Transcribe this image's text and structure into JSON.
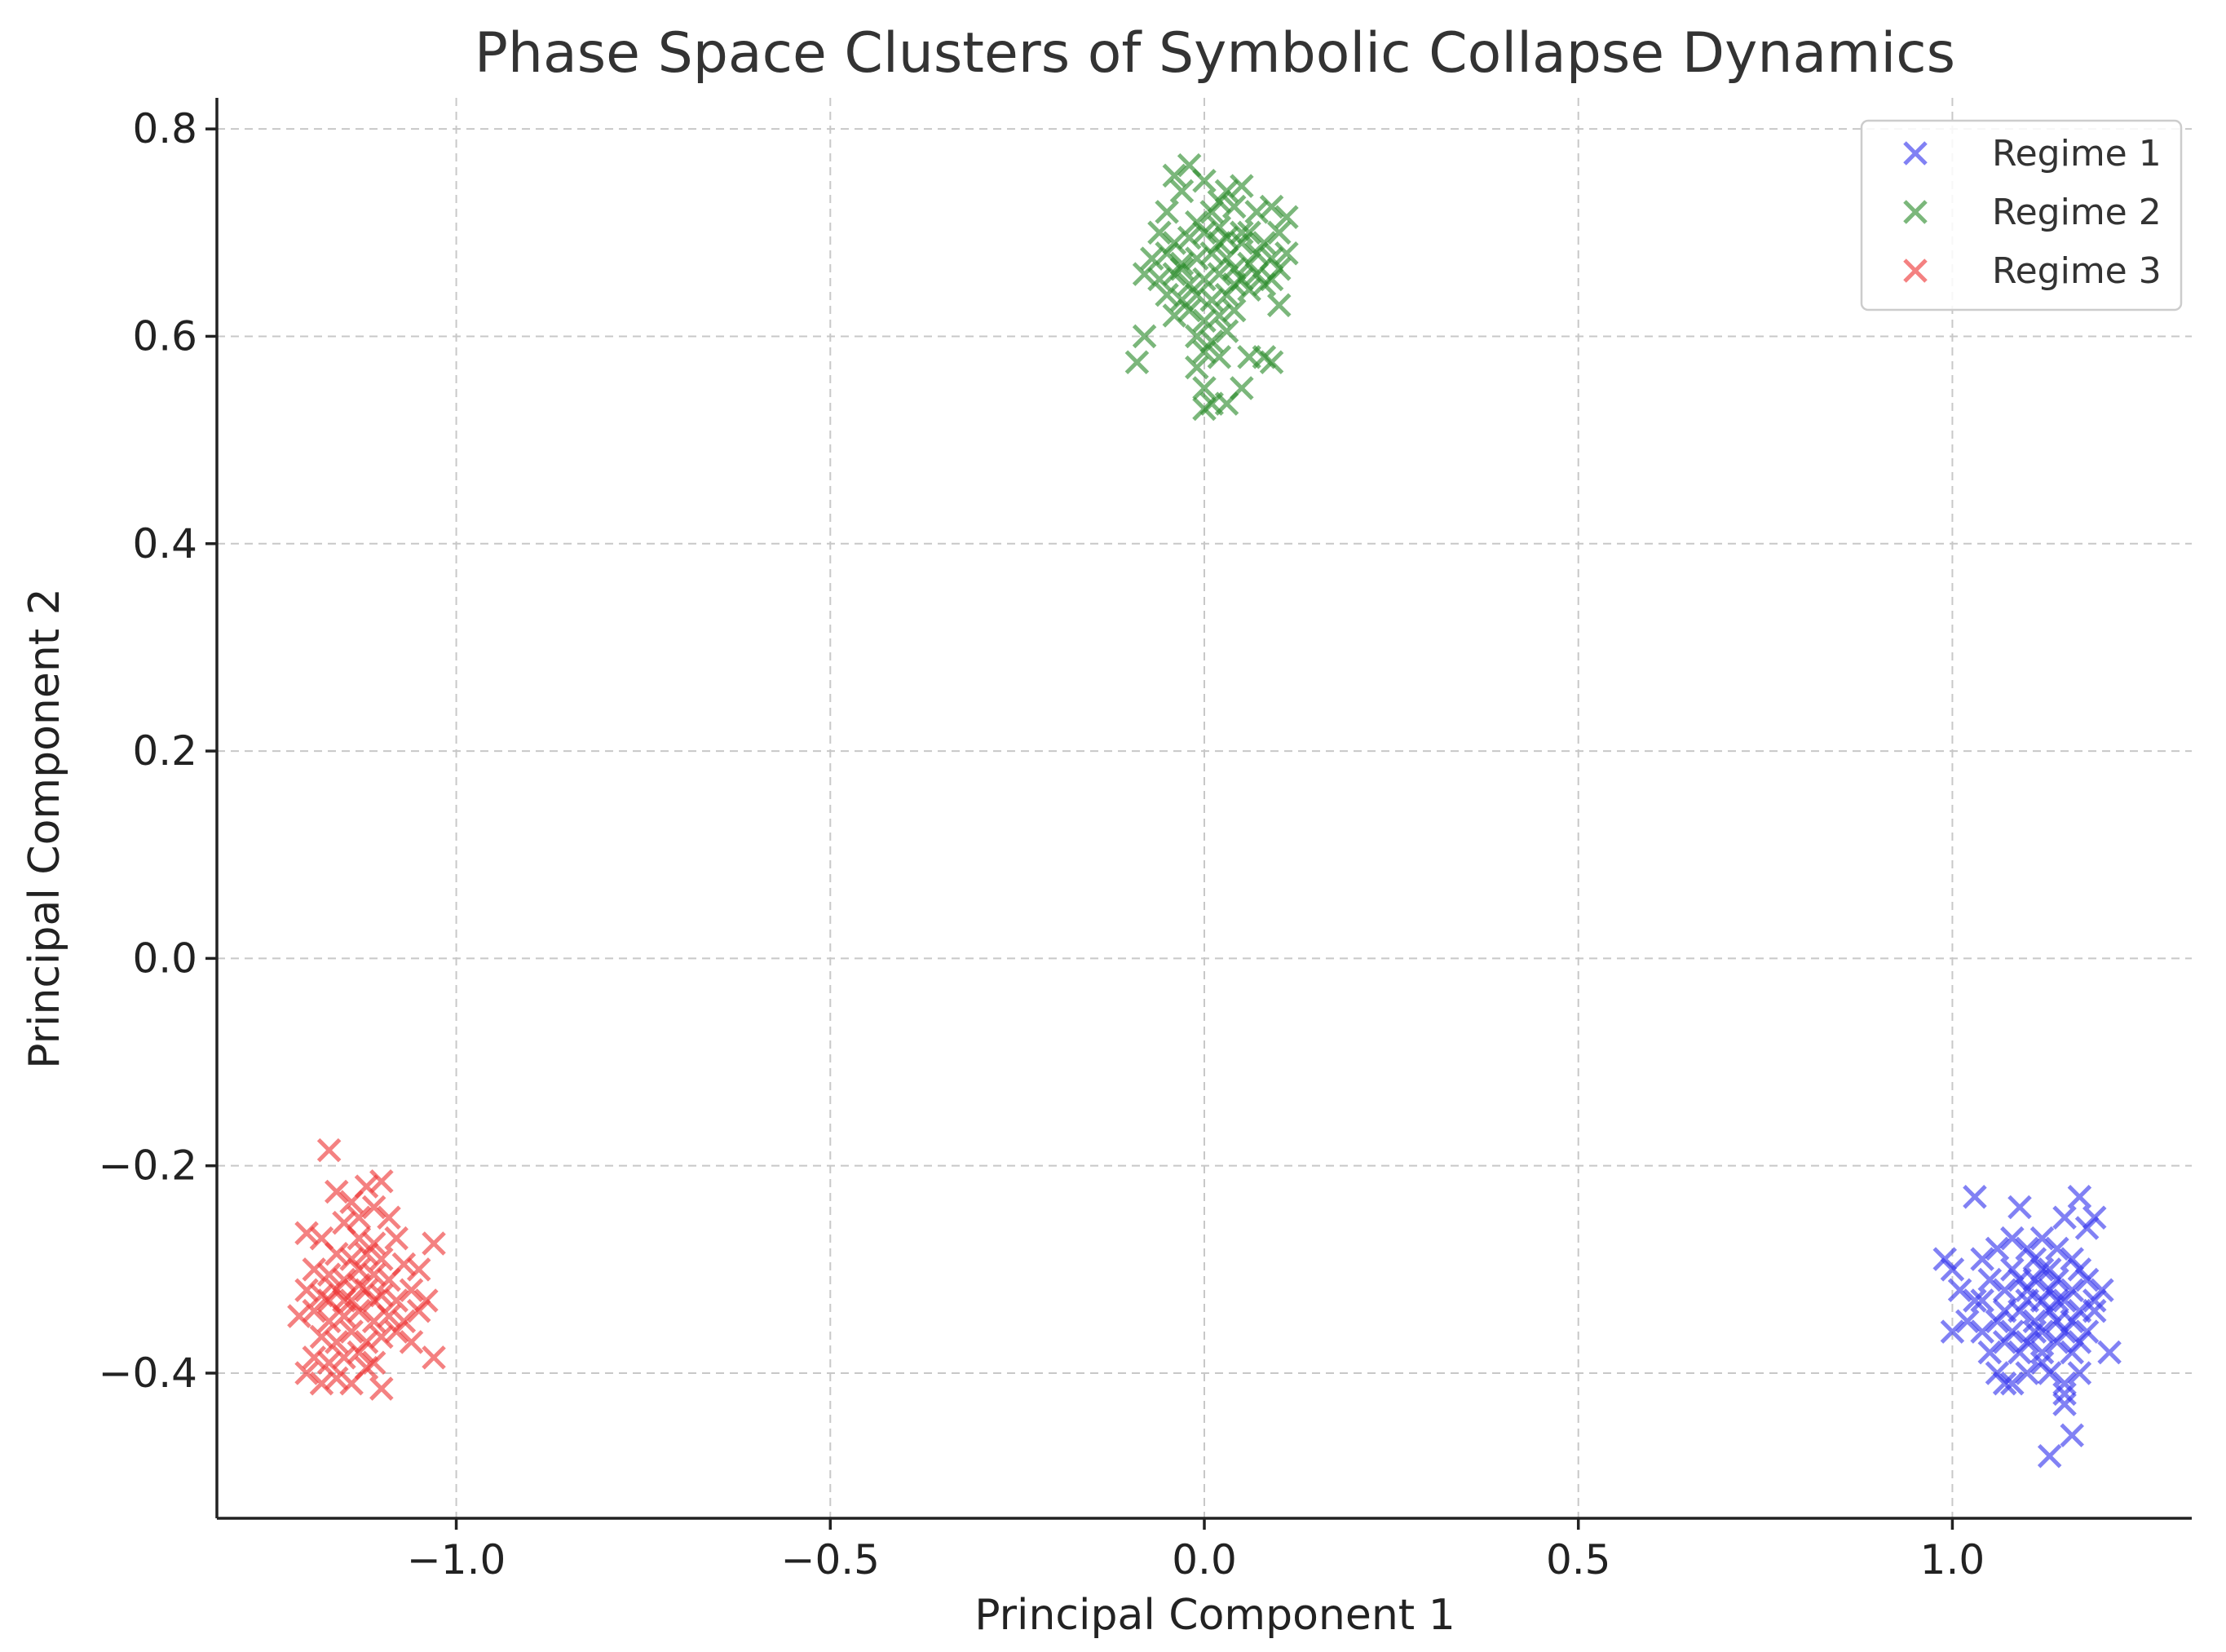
{
  "chart_data": {
    "type": "scatter",
    "title": "Phase Space Clusters of Symbolic Collapse Dynamics",
    "xlabel": "Principal Component 1",
    "ylabel": "Principal Component 2",
    "xlim": [
      -1.32,
      1.32
    ],
    "ylim": [
      -0.54,
      0.83
    ],
    "xticks": [
      -1.0,
      -0.5,
      0.0,
      0.5,
      1.0
    ],
    "xtick_labels": [
      "−1.0",
      "−0.5",
      "0.0",
      "0.5",
      "1.0"
    ],
    "yticks": [
      -0.4,
      -0.2,
      0.0,
      0.2,
      0.4,
      0.6,
      0.8
    ],
    "ytick_labels": [
      "−0.4",
      "−0.2",
      "0.0",
      "0.2",
      "0.4",
      "0.6",
      "0.8"
    ],
    "grid": true,
    "marker": "x",
    "legend_position": "top-right",
    "series": [
      {
        "name": "Regime 1",
        "color": "#3333ee",
        "points": [
          [
            1.03,
            -0.23
          ],
          [
            1.09,
            -0.24
          ],
          [
            1.17,
            -0.23
          ],
          [
            1.19,
            -0.25
          ],
          [
            1.18,
            -0.26
          ],
          [
            1.15,
            -0.25
          ],
          [
            0.99,
            -0.29
          ],
          [
            1.0,
            -0.3
          ],
          [
            1.04,
            -0.29
          ],
          [
            1.06,
            -0.28
          ],
          [
            1.08,
            -0.27
          ],
          [
            1.1,
            -0.28
          ],
          [
            1.11,
            -0.29
          ],
          [
            1.12,
            -0.27
          ],
          [
            1.13,
            -0.3
          ],
          [
            1.14,
            -0.28
          ],
          [
            1.16,
            -0.29
          ],
          [
            1.17,
            -0.3
          ],
          [
            1.01,
            -0.32
          ],
          [
            1.03,
            -0.33
          ],
          [
            1.05,
            -0.31
          ],
          [
            1.07,
            -0.32
          ],
          [
            1.08,
            -0.3
          ],
          [
            1.09,
            -0.31
          ],
          [
            1.1,
            -0.32
          ],
          [
            1.11,
            -0.31
          ],
          [
            1.12,
            -0.33
          ],
          [
            1.13,
            -0.32
          ],
          [
            1.14,
            -0.31
          ],
          [
            1.15,
            -0.33
          ],
          [
            1.16,
            -0.32
          ],
          [
            1.18,
            -0.31
          ],
          [
            1.19,
            -0.33
          ],
          [
            1.2,
            -0.32
          ],
          [
            1.17,
            -0.34
          ],
          [
            1.07,
            -0.34
          ],
          [
            1.0,
            -0.36
          ],
          [
            1.02,
            -0.35
          ],
          [
            1.04,
            -0.36
          ],
          [
            1.06,
            -0.35
          ],
          [
            1.08,
            -0.36
          ],
          [
            1.09,
            -0.34
          ],
          [
            1.11,
            -0.35
          ],
          [
            1.12,
            -0.36
          ],
          [
            1.13,
            -0.34
          ],
          [
            1.14,
            -0.35
          ],
          [
            1.15,
            -0.36
          ],
          [
            1.16,
            -0.35
          ],
          [
            1.18,
            -0.36
          ],
          [
            1.19,
            -0.34
          ],
          [
            1.05,
            -0.38
          ],
          [
            1.07,
            -0.37
          ],
          [
            1.09,
            -0.38
          ],
          [
            1.1,
            -0.37
          ],
          [
            1.12,
            -0.38
          ],
          [
            1.14,
            -0.37
          ],
          [
            1.16,
            -0.38
          ],
          [
            1.17,
            -0.37
          ],
          [
            1.21,
            -0.38
          ],
          [
            1.06,
            -0.4
          ],
          [
            1.08,
            -0.41
          ],
          [
            1.1,
            -0.4
          ],
          [
            1.12,
            -0.39
          ],
          [
            1.13,
            -0.4
          ],
          [
            1.15,
            -0.41
          ],
          [
            1.17,
            -0.4
          ],
          [
            1.07,
            -0.41
          ],
          [
            1.15,
            -0.42
          ],
          [
            1.15,
            -0.43
          ],
          [
            1.16,
            -0.46
          ],
          [
            1.13,
            -0.48
          ],
          [
            1.11,
            -0.36
          ],
          [
            1.1,
            -0.33
          ],
          [
            1.12,
            -0.3
          ],
          [
            1.14,
            -0.33
          ],
          [
            1.04,
            -0.33
          ]
        ]
      },
      {
        "name": "Regime 2",
        "color": "#2a8a2a",
        "points": [
          [
            -0.02,
            0.765
          ],
          [
            0.0,
            0.75
          ],
          [
            -0.04,
            0.755
          ],
          [
            -0.03,
            0.74
          ],
          [
            0.03,
            0.74
          ],
          [
            0.05,
            0.745
          ],
          [
            0.02,
            0.73
          ],
          [
            0.04,
            0.725
          ],
          [
            -0.05,
            0.72
          ],
          [
            -0.01,
            0.71
          ],
          [
            0.01,
            0.72
          ],
          [
            0.07,
            0.72
          ],
          [
            0.09,
            0.725
          ],
          [
            0.11,
            0.715
          ],
          [
            0.1,
            0.7
          ],
          [
            -0.06,
            0.7
          ],
          [
            -0.04,
            0.69
          ],
          [
            -0.02,
            0.695
          ],
          [
            0.0,
            0.7
          ],
          [
            0.02,
            0.705
          ],
          [
            0.03,
            0.695
          ],
          [
            0.05,
            0.69
          ],
          [
            0.06,
            0.7
          ],
          [
            0.08,
            0.69
          ],
          [
            -0.07,
            0.675
          ],
          [
            -0.05,
            0.68
          ],
          [
            -0.03,
            0.67
          ],
          [
            -0.01,
            0.675
          ],
          [
            0.01,
            0.68
          ],
          [
            0.03,
            0.675
          ],
          [
            0.04,
            0.665
          ],
          [
            0.06,
            0.67
          ],
          [
            0.07,
            0.68
          ],
          [
            0.09,
            0.675
          ],
          [
            0.11,
            0.68
          ],
          [
            0.1,
            0.665
          ],
          [
            -0.08,
            0.66
          ],
          [
            -0.06,
            0.655
          ],
          [
            -0.04,
            0.66
          ],
          [
            -0.02,
            0.65
          ],
          [
            0.0,
            0.655
          ],
          [
            0.02,
            0.66
          ],
          [
            0.04,
            0.65
          ],
          [
            0.05,
            0.655
          ],
          [
            0.07,
            0.66
          ],
          [
            0.08,
            0.65
          ],
          [
            0.09,
            0.655
          ],
          [
            -0.05,
            0.64
          ],
          [
            -0.03,
            0.635
          ],
          [
            -0.01,
            0.64
          ],
          [
            0.01,
            0.635
          ],
          [
            0.03,
            0.64
          ],
          [
            0.06,
            0.645
          ],
          [
            0.1,
            0.63
          ],
          [
            -0.04,
            0.62
          ],
          [
            -0.02,
            0.625
          ],
          [
            0.0,
            0.615
          ],
          [
            0.02,
            0.62
          ],
          [
            0.04,
            0.625
          ],
          [
            -0.01,
            0.6
          ],
          [
            0.01,
            0.595
          ],
          [
            0.03,
            0.605
          ],
          [
            -0.08,
            0.6
          ],
          [
            -0.09,
            0.575
          ],
          [
            0.0,
            0.585
          ],
          [
            0.02,
            0.58
          ],
          [
            0.06,
            0.58
          ],
          [
            0.08,
            0.58
          ],
          [
            0.09,
            0.575
          ],
          [
            -0.01,
            0.57
          ],
          [
            0.05,
            0.55
          ],
          [
            0.0,
            0.55
          ],
          [
            0.01,
            0.535
          ],
          [
            0.03,
            0.535
          ],
          [
            0.0,
            0.53
          ],
          [
            -0.03,
            0.665
          ],
          [
            0.05,
            0.7
          ],
          [
            0.02,
            0.69
          ]
        ]
      },
      {
        "name": "Regime 3",
        "color": "#ee3333",
        "points": [
          [
            -1.17,
            -0.185
          ],
          [
            -1.1,
            -0.215
          ],
          [
            -1.12,
            -0.22
          ],
          [
            -1.16,
            -0.225
          ],
          [
            -1.14,
            -0.235
          ],
          [
            -1.11,
            -0.24
          ],
          [
            -1.13,
            -0.25
          ],
          [
            -1.15,
            -0.255
          ],
          [
            -1.09,
            -0.25
          ],
          [
            -1.2,
            -0.265
          ],
          [
            -1.18,
            -0.27
          ],
          [
            -1.13,
            -0.27
          ],
          [
            -1.11,
            -0.275
          ],
          [
            -1.08,
            -0.27
          ],
          [
            -1.03,
            -0.275
          ],
          [
            -1.16,
            -0.285
          ],
          [
            -1.14,
            -0.29
          ],
          [
            -1.12,
            -0.285
          ],
          [
            -1.1,
            -0.29
          ],
          [
            -1.07,
            -0.295
          ],
          [
            -1.19,
            -0.3
          ],
          [
            -1.17,
            -0.305
          ],
          [
            -1.15,
            -0.31
          ],
          [
            -1.13,
            -0.3
          ],
          [
            -1.11,
            -0.305
          ],
          [
            -1.09,
            -0.31
          ],
          [
            -1.05,
            -0.3
          ],
          [
            -1.2,
            -0.32
          ],
          [
            -1.18,
            -0.325
          ],
          [
            -1.16,
            -0.32
          ],
          [
            -1.14,
            -0.33
          ],
          [
            -1.12,
            -0.32
          ],
          [
            -1.1,
            -0.325
          ],
          [
            -1.08,
            -0.33
          ],
          [
            -1.06,
            -0.32
          ],
          [
            -1.04,
            -0.33
          ],
          [
            -1.21,
            -0.345
          ],
          [
            -1.19,
            -0.34
          ],
          [
            -1.17,
            -0.35
          ],
          [
            -1.15,
            -0.345
          ],
          [
            -1.13,
            -0.34
          ],
          [
            -1.11,
            -0.35
          ],
          [
            -1.09,
            -0.345
          ],
          [
            -1.07,
            -0.35
          ],
          [
            -1.05,
            -0.34
          ],
          [
            -1.18,
            -0.365
          ],
          [
            -1.16,
            -0.37
          ],
          [
            -1.14,
            -0.36
          ],
          [
            -1.12,
            -0.37
          ],
          [
            -1.1,
            -0.365
          ],
          [
            -1.08,
            -0.36
          ],
          [
            -1.06,
            -0.37
          ],
          [
            -1.19,
            -0.385
          ],
          [
            -1.17,
            -0.39
          ],
          [
            -1.15,
            -0.385
          ],
          [
            -1.13,
            -0.38
          ],
          [
            -1.11,
            -0.39
          ],
          [
            -1.03,
            -0.385
          ],
          [
            -1.2,
            -0.4
          ],
          [
            -1.18,
            -0.41
          ],
          [
            -1.16,
            -0.405
          ],
          [
            -1.14,
            -0.41
          ],
          [
            -1.1,
            -0.415
          ],
          [
            -1.12,
            -0.395
          ],
          [
            -1.15,
            -0.33
          ],
          [
            -1.13,
            -0.315
          ],
          [
            -1.17,
            -0.33
          ],
          [
            -1.11,
            -0.33
          ]
        ]
      }
    ]
  }
}
